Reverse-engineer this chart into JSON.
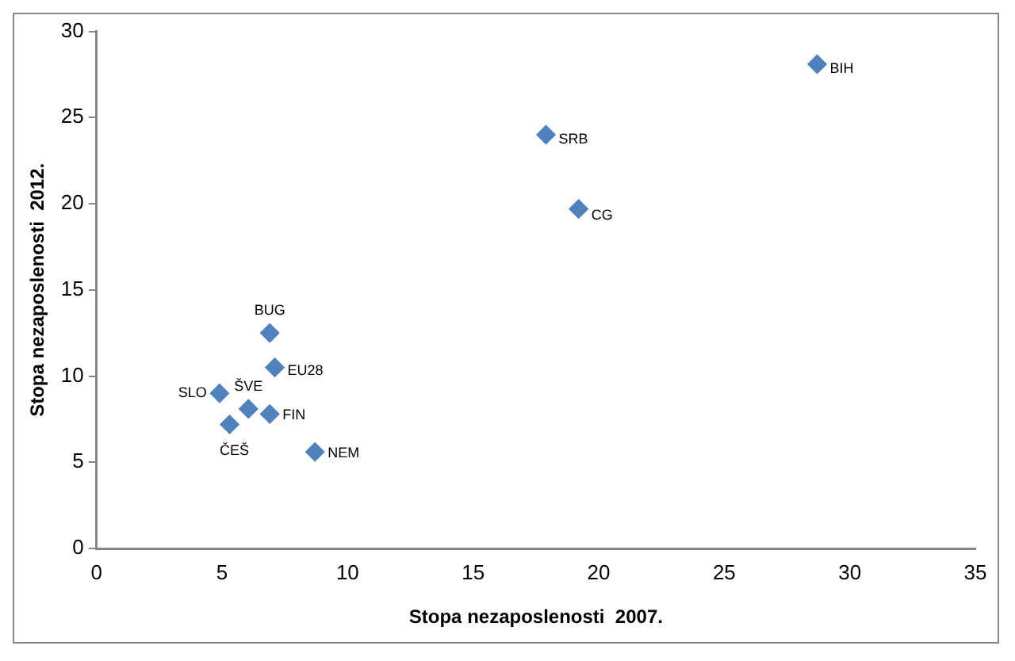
{
  "chart_data": {
    "type": "scatter",
    "xlabel": "Stopa nezaposlenosti  2007.",
    "ylabel": "Stopa nezaposlenosti  2012.",
    "x": [
      28.7,
      17.9,
      19.2,
      6.9,
      7.1,
      4.9,
      6.05,
      6.9,
      5.3,
      8.7
    ],
    "values": [
      28.1,
      24.0,
      19.7,
      12.5,
      10.5,
      9.0,
      8.1,
      7.8,
      7.2,
      5.6
    ],
    "color": "#4f81bd",
    "marker": "diamond",
    "grid": false,
    "legend": false,
    "xlim": [
      0,
      35
    ],
    "xticks": [
      0,
      5,
      10,
      15,
      20,
      25,
      30,
      35
    ],
    "ylim": [
      0,
      30
    ],
    "yticks": [
      0,
      5,
      10,
      15,
      20,
      25,
      30
    ],
    "annotations": [
      {
        "text": "BIH",
        "x": 28.7,
        "y": 28.1
      },
      {
        "text": "SRB",
        "x": 17.9,
        "y": 24.0
      },
      {
        "text": "CG",
        "x": 19.2,
        "y": 19.7
      },
      {
        "text": "BUG",
        "x": 6.9,
        "y": 12.5
      },
      {
        "text": "EU28",
        "x": 7.1,
        "y": 10.5
      },
      {
        "text": "SLO",
        "x": 4.9,
        "y": 9.0
      },
      {
        "text": "ŠVE",
        "x": 6.05,
        "y": 8.1
      },
      {
        "text": "FIN",
        "x": 6.9,
        "y": 7.8
      },
      {
        "text": "ČEŠ",
        "x": 5.3,
        "y": 7.2
      },
      {
        "text": "NEM",
        "x": 8.7,
        "y": 5.6
      }
    ]
  }
}
